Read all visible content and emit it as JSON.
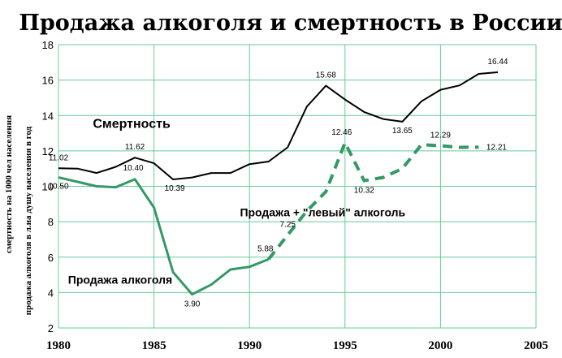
{
  "chart_data": {
    "type": "line",
    "title": "Продажа алкоголя и смертность в России",
    "ylabel_outer": "смертность на 1000 чел населения",
    "ylabel_inner": "продажа алкоголя в л.на душу населения в год",
    "xlim": [
      1980,
      2005
    ],
    "ylim": [
      2,
      18
    ],
    "x_ticks": [
      1980,
      1985,
      1990,
      1995,
      2000,
      2005
    ],
    "y_ticks": [
      2,
      4,
      6,
      8,
      10,
      12,
      14,
      16,
      18
    ],
    "grid": true,
    "colors": {
      "mortality": "#000000",
      "sales": "#339966",
      "grid": "#66cc99"
    },
    "series": [
      {
        "name": "Смертность",
        "x": [
          1980,
          1981,
          1982,
          1983,
          1984,
          1985,
          1986,
          1987,
          1988,
          1989,
          1990,
          1991,
          1992,
          1993,
          1994,
          1995,
          1996,
          1997,
          1998,
          1999,
          2000,
          2001,
          2002,
          2003
        ],
        "y": [
          11.02,
          11.0,
          10.75,
          11.1,
          11.62,
          11.3,
          10.39,
          10.5,
          10.75,
          10.75,
          11.25,
          11.4,
          12.2,
          14.5,
          15.68,
          14.9,
          14.2,
          13.8,
          13.65,
          14.8,
          15.45,
          15.7,
          16.35,
          16.44
        ],
        "style": "solid"
      },
      {
        "name": "Продажа алкоголя",
        "x": [
          1980,
          1981,
          1982,
          1983,
          1984,
          1985,
          1986,
          1987,
          1988,
          1989,
          1990,
          1991
        ],
        "y": [
          10.5,
          10.25,
          10.0,
          9.95,
          10.4,
          8.8,
          5.15,
          3.9,
          4.45,
          5.3,
          5.45,
          5.88
        ],
        "style": "solid"
      },
      {
        "name": "Продажа + \"левый\" алкоголь",
        "x": [
          1991,
          1992,
          1993,
          1994,
          1995,
          1996,
          1997,
          1998,
          1999,
          2000,
          2001,
          2002
        ],
        "y": [
          5.88,
          7.25,
          8.6,
          9.7,
          12.46,
          10.32,
          10.5,
          11.0,
          12.35,
          12.29,
          12.2,
          12.21
        ],
        "style": "dashed"
      }
    ],
    "point_labels": [
      {
        "x": 1980,
        "y": 11.02,
        "text": "11.02",
        "dx": 0,
        "dy": -10
      },
      {
        "x": 1984,
        "y": 11.62,
        "text": "11.62",
        "dx": 0,
        "dy": -10
      },
      {
        "x": 1986,
        "y": 10.39,
        "text": "10.39",
        "dx": 2,
        "dy": 14
      },
      {
        "x": 1994,
        "y": 15.68,
        "text": "15.68",
        "dx": 0,
        "dy": -10
      },
      {
        "x": 1998,
        "y": 13.65,
        "text": "13.65",
        "dx": 0,
        "dy": 14
      },
      {
        "x": 2003,
        "y": 16.44,
        "text": "16.44",
        "dx": 0,
        "dy": -10
      },
      {
        "x": 1980,
        "y": 10.5,
        "text": "10.50",
        "dx": 0,
        "dy": 14
      },
      {
        "x": 1984,
        "y": 10.4,
        "text": "10.40",
        "dx": -2,
        "dy": -11
      },
      {
        "x": 1987,
        "y": 3.9,
        "text": "3.90",
        "dx": 0,
        "dy": 15
      },
      {
        "x": 1991,
        "y": 5.88,
        "text": "5.88",
        "dx": -4,
        "dy": -10
      },
      {
        "x": 1992,
        "y": 7.25,
        "text": "7.25",
        "dx": 0,
        "dy": -10
      },
      {
        "x": 1995,
        "y": 12.46,
        "text": "12.46",
        "dx": -4,
        "dy": -10
      },
      {
        "x": 1996,
        "y": 10.32,
        "text": "10.32",
        "dx": 0,
        "dy": 15
      },
      {
        "x": 2000,
        "y": 12.29,
        "text": "12.29",
        "dx": 0,
        "dy": -10
      },
      {
        "x": 2002,
        "y": 12.21,
        "text": "12.21",
        "dx": 22,
        "dy": 3
      }
    ],
    "series_labels": [
      {
        "text": "Смертность",
        "x": 1981.8,
        "y": 13.3,
        "size": "big"
      },
      {
        "text": "Продажа + \"левый\" алкоголь",
        "x": 1989.5,
        "y": 8.3,
        "size": "normal"
      },
      {
        "text": "Продажа алкоголя",
        "x": 1980.5,
        "y": 4.5,
        "size": "normal"
      }
    ]
  }
}
